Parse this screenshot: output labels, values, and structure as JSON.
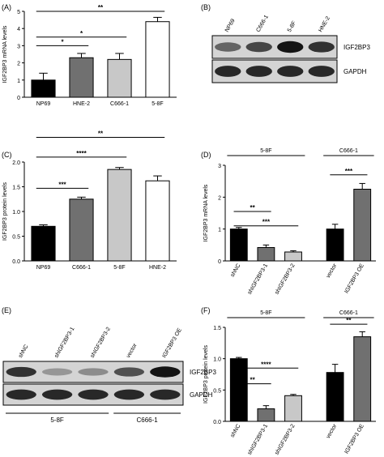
{
  "panel_labels": [
    "(A)",
    "(B)",
    "(C)",
    "(D)",
    "(E)",
    "(F)"
  ],
  "chart_data": [
    {
      "panel": "(A)",
      "type": "bar",
      "categories": [
        "NP69",
        "HNE-2",
        "C666-1",
        "5-8F"
      ],
      "values": [
        1.0,
        2.3,
        2.2,
        4.4
      ],
      "errors": [
        0.4,
        0.25,
        0.35,
        0.25
      ],
      "bar_colors": [
        "#000000",
        "#707070",
        "#c8c8c8",
        "#ffffff"
      ],
      "ylabel": "IGF2BP3 mRNA levels",
      "ylim": [
        0,
        5
      ],
      "yticks": [
        "0",
        "1",
        "2",
        "3",
        "4",
        "5"
      ],
      "significance": [
        {
          "from": 0,
          "to": 1,
          "label": "*"
        },
        {
          "from": 0,
          "to": 2,
          "label": "*"
        },
        {
          "from": 0,
          "to": 3,
          "label": "**"
        }
      ]
    },
    {
      "panel": "(C)",
      "type": "bar",
      "categories": [
        "NP69",
        "C666-1",
        "5-8F",
        "HNE-2"
      ],
      "values": [
        0.7,
        1.25,
        1.85,
        1.62
      ],
      "errors": [
        0.03,
        0.04,
        0.04,
        0.1
      ],
      "bar_colors": [
        "#000000",
        "#707070",
        "#c8c8c8",
        "#ffffff"
      ],
      "ylabel": "IGF2BP3 protein levels",
      "ylim": [
        0,
        2.0
      ],
      "yticks": [
        "0.0",
        "0.5",
        "1.0",
        "1.5",
        "2.0"
      ],
      "significance": [
        {
          "from": 0,
          "to": 1,
          "label": "***"
        },
        {
          "from": 0,
          "to": 2,
          "label": "****"
        },
        {
          "from": 0,
          "to": 3,
          "label": "**"
        }
      ]
    },
    {
      "panel": "(D)",
      "type": "bar",
      "categories": [
        "shNC",
        "shIGF2BP3-1",
        "shIGF2BP3-2",
        "vector",
        "IGF2BP3 OE"
      ],
      "values": [
        1.0,
        0.42,
        0.28,
        1.0,
        2.25
      ],
      "errors": [
        0.05,
        0.08,
        0.04,
        0.15,
        0.18
      ],
      "bar_colors": [
        "#000000",
        "#707070",
        "#c8c8c8",
        "#000000",
        "#707070"
      ],
      "ylabel": "IGF2BP3 mRNA levels",
      "ylim": [
        0,
        3
      ],
      "yticks": [
        "0",
        "1",
        "2",
        "3"
      ],
      "groups": [
        {
          "label": "5-8F",
          "members": [
            0,
            1,
            2
          ]
        },
        {
          "label": "C666-1",
          "members": [
            3,
            4
          ]
        }
      ],
      "significance": [
        {
          "from": 0,
          "to": 1,
          "label": "**"
        },
        {
          "from": 0,
          "to": 2,
          "label": "***"
        },
        {
          "from": 3,
          "to": 4,
          "label": "***"
        }
      ]
    },
    {
      "panel": "(F)",
      "type": "bar",
      "categories": [
        "shNC",
        "shIGF2BP3-1",
        "shIGF2BP3-2",
        "vector",
        "IGF2BP3 OE"
      ],
      "values": [
        1.0,
        0.2,
        0.41,
        0.78,
        1.35
      ],
      "errors": [
        0.02,
        0.05,
        0.02,
        0.13,
        0.08
      ],
      "bar_colors": [
        "#000000",
        "#707070",
        "#c8c8c8",
        "#000000",
        "#707070"
      ],
      "ylabel": "IGF2BP3 protein levels",
      "ylim": [
        0,
        1.5
      ],
      "yticks": [
        "0.0",
        "0.5",
        "1.0",
        "1.5"
      ],
      "groups": [
        {
          "label": "5-8F",
          "members": [
            0,
            1,
            2
          ]
        },
        {
          "label": "C666-1",
          "members": [
            3,
            4
          ]
        }
      ],
      "significance": [
        {
          "from": 0,
          "to": 1,
          "label": "**"
        },
        {
          "from": 0,
          "to": 2,
          "label": "****"
        },
        {
          "from": 3,
          "to": 4,
          "label": "**"
        }
      ]
    }
  ],
  "blots": [
    {
      "panel": "(B)",
      "lanes": [
        "NP69",
        "C666-1",
        "5-8F",
        "HNE-2"
      ],
      "rows": [
        {
          "label": "IGF2BP3",
          "intensities": [
            0.55,
            0.7,
            0.95,
            0.8
          ]
        },
        {
          "label": "GAPDH",
          "intensities": [
            0.85,
            0.85,
            0.85,
            0.85
          ]
        }
      ]
    },
    {
      "panel": "(E)",
      "lanes": [
        "shNC",
        "shIGF2BP3-1",
        "shIGF2BP3-2",
        "vector",
        "IGF2BP3 OE"
      ],
      "rows": [
        {
          "label": "IGF2BP3",
          "intensities": [
            0.8,
            0.3,
            0.35,
            0.65,
            0.95
          ]
        },
        {
          "label": "GAPDH",
          "intensities": [
            0.85,
            0.85,
            0.85,
            0.85,
            0.85
          ]
        }
      ],
      "groups": [
        {
          "label": "5-8F",
          "members": [
            0,
            1,
            2
          ]
        },
        {
          "label": "C666-1",
          "members": [
            3,
            4
          ]
        }
      ]
    }
  ]
}
